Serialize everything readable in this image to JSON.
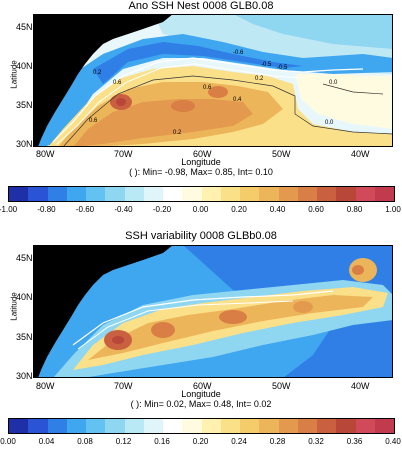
{
  "panels": [
    {
      "title": "Ano SSH Nest 0008 GLB0.08",
      "ylabel": "Latitude",
      "xlabel": "Longitude",
      "xticks": [
        "80W",
        "70W",
        "60W",
        "50W",
        "40W"
      ],
      "yticks": [
        "45N",
        "40N",
        "35N",
        "30N"
      ],
      "stats": "( ): Min= -0.98, Max= 0.85, Int= 0.10",
      "contour_labels": [
        "-0.6",
        "-0.5",
        "-0.5",
        "0.2",
        "0.0",
        "0.0",
        "0.6",
        "0.6",
        "0.4",
        "0.2",
        "0.6",
        "0.2"
      ],
      "colorbar": {
        "ticks": [
          "-1.00",
          "-0.80",
          "-0.60",
          "-0.40",
          "-0.20",
          "0.00",
          "0.20",
          "0.40",
          "0.60",
          "0.80",
          "1.00"
        ],
        "colors": [
          "#1e2fa8",
          "#2a53d6",
          "#2f7fe6",
          "#3fa6f0",
          "#63c2f2",
          "#8fd6f0",
          "#b9e9f4",
          "#e0f5fa",
          "#ffffff",
          "#fffbe0",
          "#fff2b0",
          "#fbe08a",
          "#f5cc6a",
          "#edb55a",
          "#e49a4e",
          "#d97e45",
          "#c9603f",
          "#b8473a",
          "#d04a5a",
          "#c23a4e"
        ]
      }
    },
    {
      "title": "SSH variability 0008 GLBb0.08",
      "ylabel": "Latitude",
      "xlabel": "Longitude",
      "xticks": [
        "80W",
        "70W",
        "60W",
        "50W",
        "40W"
      ],
      "yticks": [
        "45N",
        "40N",
        "35N",
        "30N"
      ],
      "stats": "( ): Min= 0.02, Max= 0.48, Int= 0.02",
      "colorbar": {
        "ticks": [
          "0.00",
          "0.04",
          "0.08",
          "0.12",
          "0.16",
          "0.20",
          "0.24",
          "0.28",
          "0.32",
          "0.36",
          "0.40"
        ],
        "colors": [
          "#1e2fa8",
          "#2a53d6",
          "#2f7fe6",
          "#3fa6f0",
          "#63c2f2",
          "#8fd6f0",
          "#b9e9f4",
          "#e0f5fa",
          "#ffffff",
          "#fffbe0",
          "#fff2b0",
          "#fbe08a",
          "#f5cc6a",
          "#edb55a",
          "#e49a4e",
          "#d97e45",
          "#c9603f",
          "#b8473a",
          "#d04a5a",
          "#c23a4e"
        ]
      }
    }
  ]
}
